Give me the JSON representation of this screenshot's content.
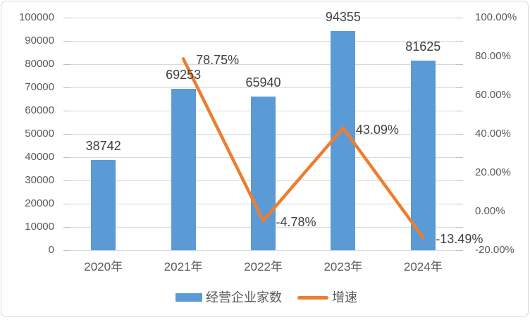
{
  "chart_data": {
    "type": "combo-bar-line",
    "title": "",
    "categories": [
      "2020年",
      "2021年",
      "2022年",
      "2023年",
      "2024年"
    ],
    "series": [
      {
        "name": "经营企业家数",
        "type": "bar",
        "axis": "left",
        "color": "#5B9BD5",
        "values": [
          38742,
          69253,
          65940,
          94355,
          81625
        ],
        "data_labels": [
          "38742",
          "69253",
          "65940",
          "94355",
          "81625"
        ]
      },
      {
        "name": "增速",
        "type": "line",
        "axis": "right",
        "color": "#ED7D31",
        "values": [
          null,
          78.75,
          -4.78,
          43.09,
          -13.49
        ],
        "data_labels": [
          null,
          "78.75%",
          "-4.78%",
          "43.09%",
          "-13.49%"
        ]
      }
    ],
    "left_axis": {
      "min": 0,
      "max": 100000,
      "step": 10000,
      "tick_labels": [
        "100000",
        "90000",
        "80000",
        "70000",
        "60000",
        "50000",
        "40000",
        "30000",
        "20000",
        "10000",
        "0"
      ]
    },
    "right_axis": {
      "min": -20,
      "max": 100,
      "step": 20,
      "tick_labels": [
        "100.00%",
        "80.00%",
        "60.00%",
        "40.00%",
        "20.00%",
        "0.00%",
        "-20.00%"
      ]
    },
    "grid": true,
    "legend_position": "bottom",
    "colors": {
      "bar": "#5B9BD5",
      "line": "#ED7D31",
      "grid": "#D9D9D9",
      "tick_text": "#595959",
      "label_text": "#404040",
      "background": "#FFFFFF",
      "border": "#D7D7D7"
    }
  }
}
